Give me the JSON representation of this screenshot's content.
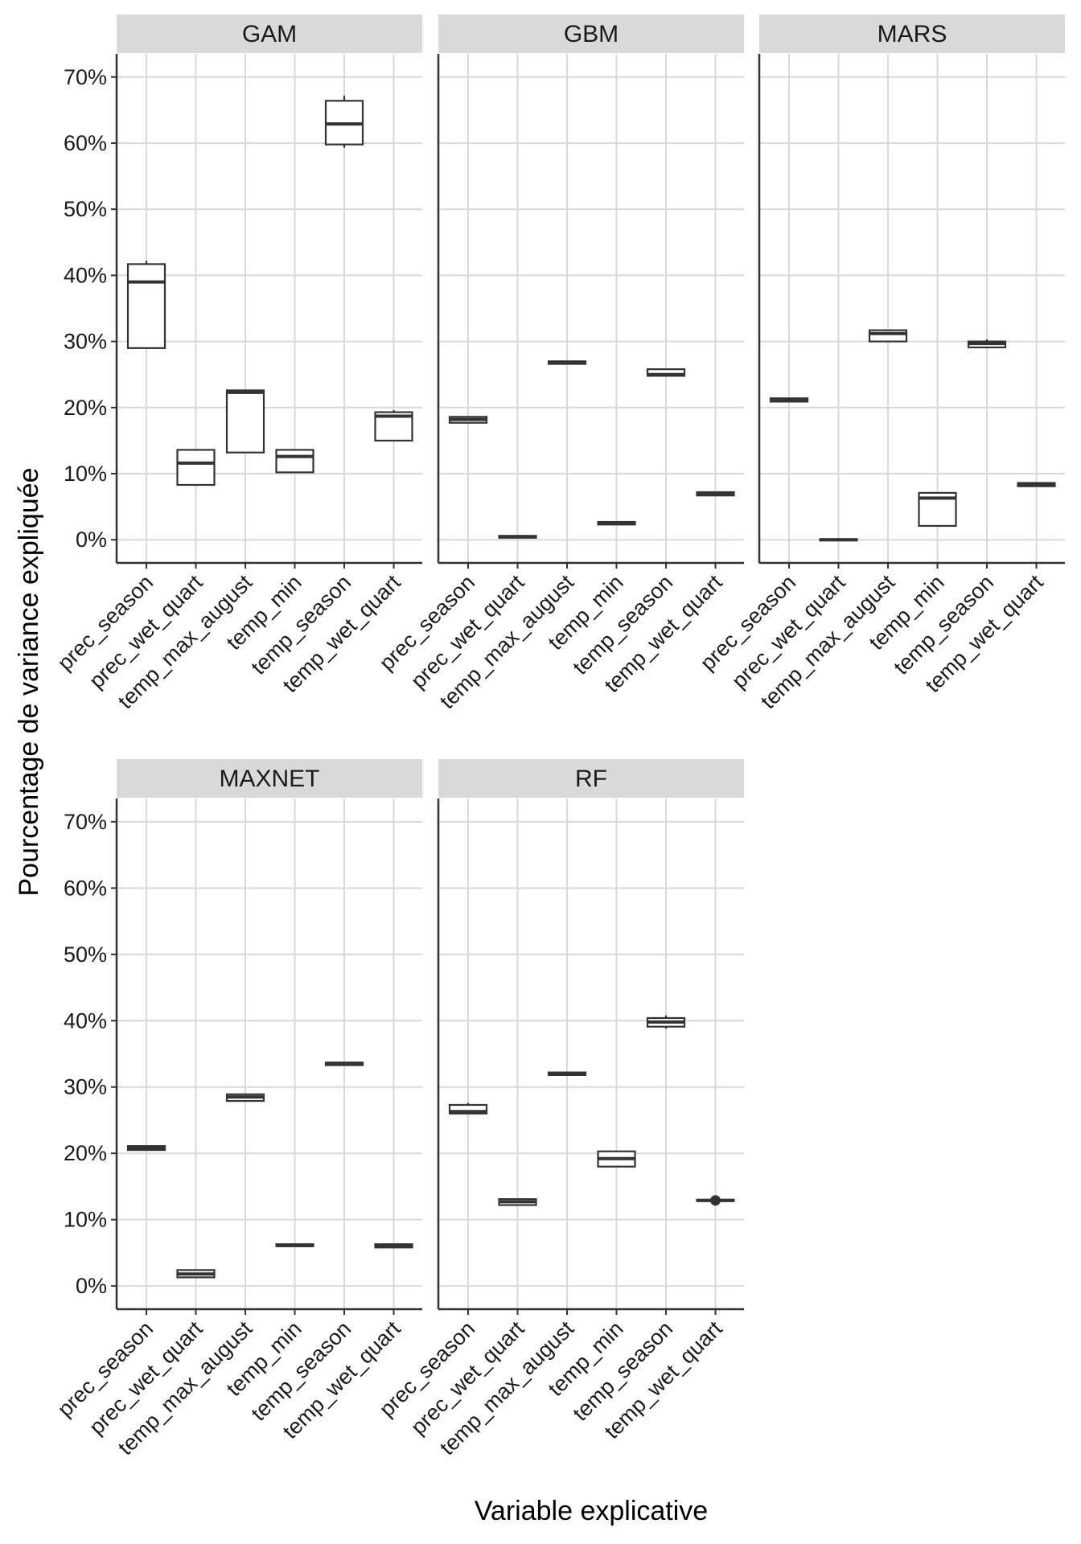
{
  "chart_data": {
    "type": "boxplot",
    "xlabel": "Variable explicative",
    "ylabel": "Pourcentage de variance expliquée",
    "ylim": [
      -3.5,
      73.5
    ],
    "y_ticks": [
      0,
      10,
      20,
      30,
      40,
      50,
      60,
      70
    ],
    "y_tick_labels": [
      "0%",
      "10%",
      "20%",
      "30%",
      "40%",
      "50%",
      "60%",
      "70%"
    ],
    "categories": [
      "prec_season",
      "prec_wet_quart",
      "temp_max_august",
      "temp_min",
      "temp_season",
      "temp_wet_quart"
    ],
    "panels": [
      {
        "name": "GAM",
        "boxes": [
          {
            "variable": "prec_season",
            "min": 29,
            "q1": 29,
            "median": 39,
            "q3": 41.7,
            "max": 42.2
          },
          {
            "variable": "prec_wet_quart",
            "min": 8.3,
            "q1": 8.3,
            "median": 11.6,
            "q3": 13.6,
            "max": 13.6
          },
          {
            "variable": "temp_max_august",
            "min": 13.2,
            "q1": 13.2,
            "median": 22.3,
            "q3": 22.6,
            "max": 22.6
          },
          {
            "variable": "temp_min",
            "min": 10.2,
            "q1": 10.2,
            "median": 12.6,
            "q3": 13.6,
            "max": 13.6
          },
          {
            "variable": "temp_season",
            "min": 59.3,
            "q1": 59.8,
            "median": 62.9,
            "q3": 66.4,
            "max": 67.2
          },
          {
            "variable": "temp_wet_quart",
            "min": 15,
            "q1": 15,
            "median": 18.7,
            "q3": 19.3,
            "max": 19.6
          }
        ]
      },
      {
        "name": "GBM",
        "boxes": [
          {
            "variable": "prec_season",
            "min": 17.7,
            "q1": 17.7,
            "median": 18.2,
            "q3": 18.6,
            "max": 18.6
          },
          {
            "variable": "prec_wet_quart",
            "min": 0.3,
            "q1": 0.3,
            "median": 0.45,
            "q3": 0.6,
            "max": 0.6
          },
          {
            "variable": "temp_max_august",
            "min": 26.6,
            "q1": 26.6,
            "median": 26.8,
            "q3": 27.0,
            "max": 27.0
          },
          {
            "variable": "temp_min",
            "min": 2.3,
            "q1": 2.3,
            "median": 2.5,
            "q3": 2.7,
            "max": 2.7
          },
          {
            "variable": "temp_season",
            "min": 24.8,
            "q1": 24.8,
            "median": 25.0,
            "q3": 25.8,
            "max": 25.8
          },
          {
            "variable": "temp_wet_quart",
            "min": 6.7,
            "q1": 6.7,
            "median": 6.9,
            "q3": 7.2,
            "max": 7.2
          }
        ]
      },
      {
        "name": "MARS",
        "boxes": [
          {
            "variable": "prec_season",
            "min": 20.9,
            "q1": 20.9,
            "median": 21.1,
            "q3": 21.4,
            "max": 21.4
          },
          {
            "variable": "prec_wet_quart",
            "min": -0.1,
            "q1": -0.1,
            "median": 0,
            "q3": 0.1,
            "max": 0.1
          },
          {
            "variable": "temp_max_august",
            "min": 30,
            "q1": 30,
            "median": 31.2,
            "q3": 31.7,
            "max": 31.7
          },
          {
            "variable": "temp_min",
            "min": 2.1,
            "q1": 2.1,
            "median": 6.3,
            "q3": 7.1,
            "max": 7.1
          },
          {
            "variable": "temp_season",
            "min": 29.1,
            "q1": 29.1,
            "median": 29.7,
            "q3": 30.0,
            "max": 30.3
          },
          {
            "variable": "temp_wet_quart",
            "min": 8.1,
            "q1": 8.1,
            "median": 8.3,
            "q3": 8.6,
            "max": 8.6
          }
        ]
      },
      {
        "name": "MAXNET",
        "boxes": [
          {
            "variable": "prec_season",
            "min": 20.5,
            "q1": 20.5,
            "median": 20.8,
            "q3": 21.1,
            "max": 21.1
          },
          {
            "variable": "prec_wet_quart",
            "min": 1.3,
            "q1": 1.3,
            "median": 1.8,
            "q3": 2.4,
            "max": 2.4
          },
          {
            "variable": "temp_max_august",
            "min": 27.9,
            "q1": 27.9,
            "median": 28.5,
            "q3": 28.9,
            "max": 28.9
          },
          {
            "variable": "temp_min",
            "min": 6.0,
            "q1": 6.0,
            "median": 6.1,
            "q3": 6.3,
            "max": 6.3
          },
          {
            "variable": "temp_season",
            "min": 33.3,
            "q1": 33.3,
            "median": 33.5,
            "q3": 33.7,
            "max": 33.7
          },
          {
            "variable": "temp_wet_quart",
            "min": 5.8,
            "q1": 5.8,
            "median": 6.0,
            "q3": 6.3,
            "max": 6.3
          }
        ]
      },
      {
        "name": "RF",
        "boxes": [
          {
            "variable": "prec_season",
            "min": 26.0,
            "q1": 26.0,
            "median": 26.3,
            "q3": 27.3,
            "max": 27.6
          },
          {
            "variable": "prec_wet_quart",
            "min": 12.2,
            "q1": 12.2,
            "median": 12.7,
            "q3": 13.1,
            "max": 13.1
          },
          {
            "variable": "temp_max_august",
            "min": 31.8,
            "q1": 31.8,
            "median": 32.0,
            "q3": 32.2,
            "max": 32.2
          },
          {
            "variable": "temp_min",
            "min": 18.0,
            "q1": 18.0,
            "median": 19.2,
            "q3": 20.3,
            "max": 20.3
          },
          {
            "variable": "temp_season",
            "min": 38.8,
            "q1": 39.1,
            "median": 39.8,
            "q3": 40.4,
            "max": 40.8
          },
          {
            "variable": "temp_wet_quart",
            "min": 12.8,
            "q1": 12.8,
            "median": 12.9,
            "q3": 13.0,
            "max": 13.0,
            "outliers": [
              12.9
            ]
          }
        ]
      }
    ]
  }
}
